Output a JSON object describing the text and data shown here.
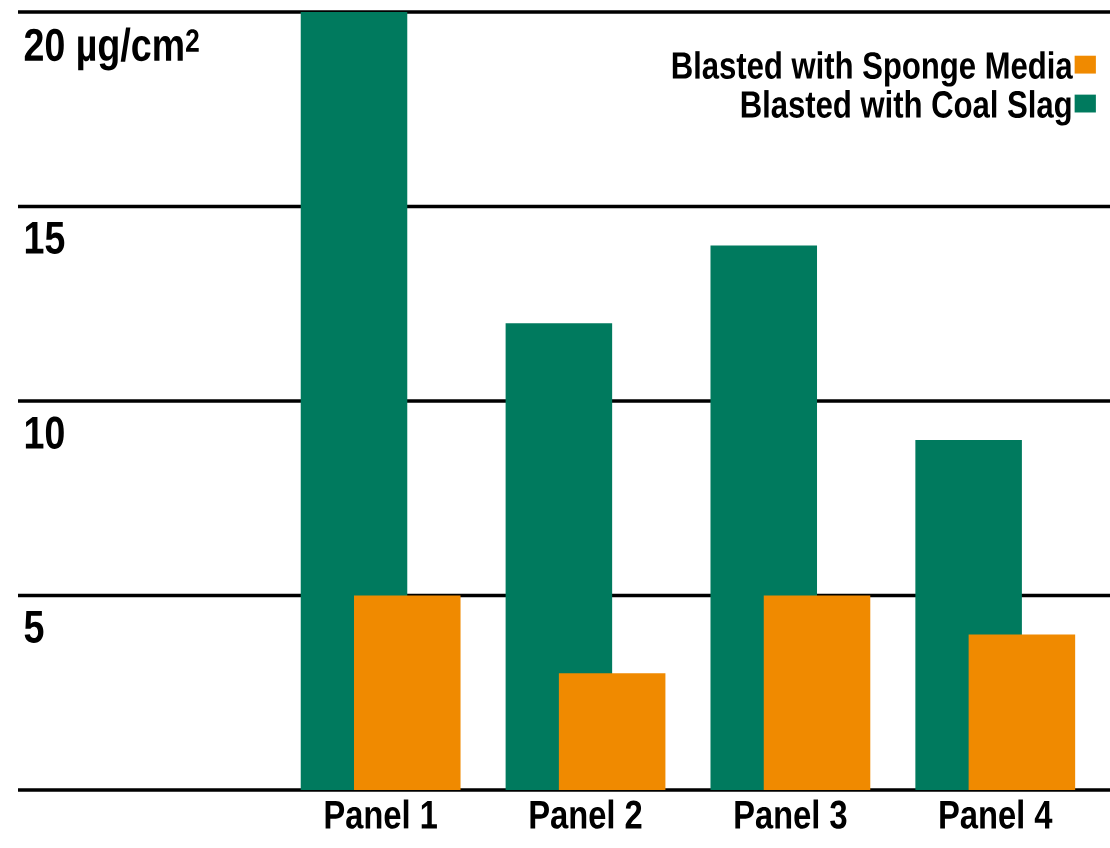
{
  "chart_data": {
    "type": "bar",
    "categories": [
      "Panel 1",
      "Panel 2",
      "Panel 3",
      "Panel 4"
    ],
    "series": [
      {
        "name": "Blasted with Coal Slag",
        "color": "#007a5e",
        "values": [
          20,
          12,
          14,
          9
        ]
      },
      {
        "name": "Blasted with Sponge Media",
        "color": "#f08a00",
        "values": [
          5,
          3,
          5,
          4
        ]
      }
    ],
    "ylim": [
      0,
      20
    ],
    "yticks": [
      {
        "value": 0,
        "label": null
      },
      5,
      10,
      15,
      {
        "value": 20,
        "label": "20 µg/cm$^{2}$"
      }
    ],
    "grid": "y",
    "legend": "top right"
  }
}
